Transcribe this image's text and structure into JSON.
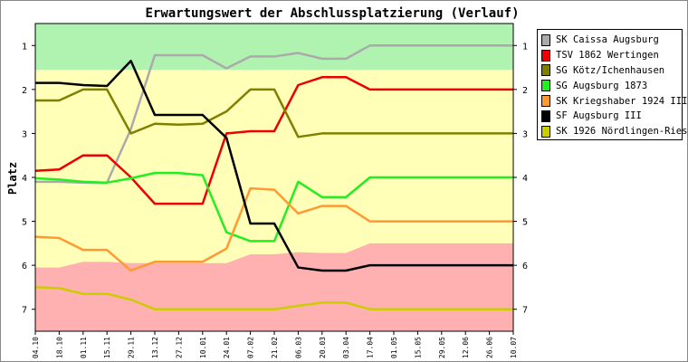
{
  "chart_data": {
    "type": "line",
    "title": "Erwartungswert der Abschlussplatzierung (Verlauf)",
    "ylabel": "Platz",
    "xlabel": "",
    "ylim": [
      0.5,
      7.5
    ],
    "yticks": [
      1,
      2,
      3,
      4,
      5,
      6,
      7
    ],
    "categories": [
      "04.10",
      "18.10",
      "01.11",
      "15.11",
      "29.11",
      "13.12",
      "27.12",
      "10.01",
      "24.01",
      "07.02",
      "21.02",
      "06.03",
      "20.03",
      "03.04",
      "17.04",
      "01.05",
      "15.05",
      "29.05",
      "12.06",
      "26.06",
      "10.07"
    ],
    "legend_position": "top-right",
    "bands": [
      {
        "name": "promotion",
        "color": "#b0f2b0",
        "upper": [
          1.55,
          1.55,
          1.55,
          1.55,
          1.55,
          1.55,
          1.55,
          1.55,
          1.55,
          1.55,
          1.55,
          1.55,
          1.55,
          1.55,
          1.55,
          1.55,
          1.55,
          1.55,
          1.55,
          1.55,
          1.55
        ]
      },
      {
        "name": "relegation",
        "color": "#ffb0b0",
        "lower": [
          6.05,
          6.05,
          5.92,
          5.92,
          5.95,
          5.95,
          5.95,
          5.95,
          5.95,
          5.75,
          5.75,
          5.7,
          5.72,
          5.72,
          5.5,
          5.5,
          5.5,
          5.5,
          5.5,
          5.5,
          5.5
        ]
      }
    ],
    "middle_color": "#ffffb8",
    "series": [
      {
        "name": "SK Caissa Augsburg",
        "color": "#aaaaaa",
        "values": [
          4.1,
          4.1,
          4.12,
          4.12,
          2.9,
          1.22,
          1.22,
          1.22,
          1.52,
          1.25,
          1.25,
          1.17,
          1.3,
          1.3,
          1.0,
          1.0,
          1.0,
          1.0,
          1.0,
          1.0,
          1.0
        ]
      },
      {
        "name": "TSV 1862 Wertingen",
        "color": "#ee0000",
        "values": [
          3.85,
          3.82,
          3.5,
          3.5,
          4.0,
          4.6,
          4.6,
          4.6,
          3.0,
          2.95,
          2.95,
          1.9,
          1.72,
          1.72,
          2.0,
          2.0,
          2.0,
          2.0,
          2.0,
          2.0,
          2.0
        ]
      },
      {
        "name": "SG Kötz/Ichenhausen",
        "color": "#808000",
        "values": [
          2.25,
          2.25,
          2.0,
          2.0,
          3.0,
          2.78,
          2.8,
          2.78,
          2.5,
          2.0,
          2.0,
          3.08,
          3.0,
          3.0,
          3.0,
          3.0,
          3.0,
          3.0,
          3.0,
          3.0,
          3.0
        ]
      },
      {
        "name": "SG Augsburg 1873",
        "color": "#22ee22",
        "values": [
          4.02,
          4.05,
          4.1,
          4.12,
          4.02,
          3.9,
          3.9,
          3.95,
          5.25,
          5.45,
          5.45,
          4.1,
          4.45,
          4.45,
          4.0,
          4.0,
          4.0,
          4.0,
          4.0,
          4.0,
          4.0
        ]
      },
      {
        "name": "SK Kriegshaber 1924 III",
        "color": "#ff9933",
        "values": [
          5.35,
          5.38,
          5.65,
          5.65,
          6.12,
          5.92,
          5.92,
          5.92,
          5.62,
          4.25,
          4.28,
          4.82,
          4.65,
          4.65,
          5.0,
          5.0,
          5.0,
          5.0,
          5.0,
          5.0,
          5.0
        ]
      },
      {
        "name": "SF Augsburg III",
        "color": "#000000",
        "values": [
          1.85,
          1.85,
          1.9,
          1.92,
          1.35,
          2.58,
          2.58,
          2.58,
          3.1,
          5.05,
          5.05,
          6.05,
          6.12,
          6.12,
          6.0,
          6.0,
          6.0,
          6.0,
          6.0,
          6.0,
          6.0
        ]
      },
      {
        "name": "SK 1926 Nördlingen-Ries",
        "color": "#cccc00",
        "values": [
          6.5,
          6.52,
          6.65,
          6.65,
          6.78,
          7.0,
          7.0,
          7.0,
          7.0,
          7.0,
          7.0,
          6.92,
          6.85,
          6.85,
          7.0,
          7.0,
          7.0,
          7.0,
          7.0,
          7.0,
          7.0
        ]
      }
    ]
  }
}
